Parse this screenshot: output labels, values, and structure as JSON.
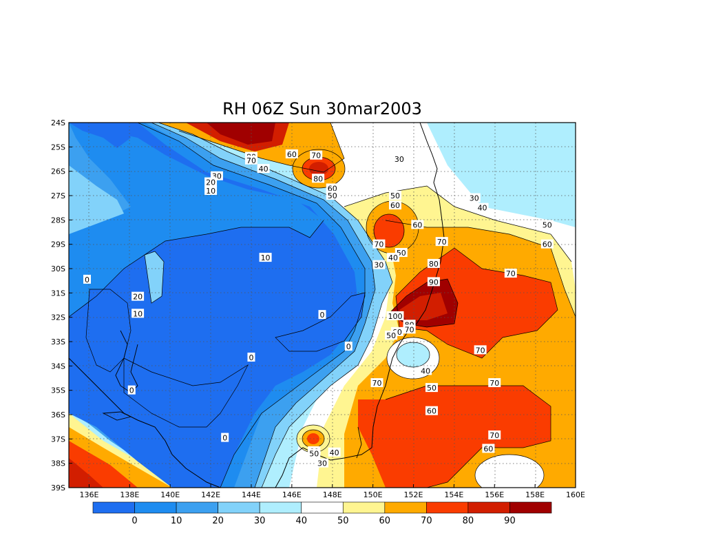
{
  "title": "RH 06Z Sun 30mar2003",
  "map": {
    "lon_labels": [
      "136E",
      "138E",
      "140E",
      "142E",
      "144E",
      "146E",
      "148E",
      "150E",
      "152E",
      "154E",
      "156E",
      "158E",
      "160E"
    ],
    "lat_labels": [
      "24S",
      "25S",
      "26S",
      "27S",
      "28S",
      "29S",
      "30S",
      "31S",
      "32S",
      "33S",
      "34S",
      "35S",
      "36S",
      "37S",
      "38S",
      "39S"
    ],
    "lon_range": [
      135,
      160
    ],
    "lat_range": [
      -39,
      -24
    ],
    "grid": "dotted"
  },
  "colorbar": {
    "levels": [
      "0",
      "10",
      "20",
      "30",
      "40",
      "50",
      "60",
      "70",
      "80",
      "90"
    ],
    "colors": [
      "#1e6ef0",
      "#1e8cf0",
      "#3ca0f0",
      "#82d2fa",
      "#afeefe",
      "#ffffff",
      "#fff591",
      "#ffaa00",
      "#fa3c00",
      "#d21e00",
      "#a00000"
    ]
  },
  "contour_labels": [
    {
      "text": "80",
      "lon": 144.0,
      "lat": -25.4
    },
    {
      "text": "70",
      "lon": 144.0,
      "lat": -25.55
    },
    {
      "text": "40",
      "lon": 144.6,
      "lat": -25.9
    },
    {
      "text": "30",
      "lon": 142.3,
      "lat": -26.2
    },
    {
      "text": "20",
      "lon": 142.0,
      "lat": -26.45
    },
    {
      "text": "10",
      "lon": 142.0,
      "lat": -26.8
    },
    {
      "text": "60",
      "lon": 146.0,
      "lat": -25.3
    },
    {
      "text": "70",
      "lon": 147.2,
      "lat": -25.35
    },
    {
      "text": "80",
      "lon": 147.3,
      "lat": -26.3
    },
    {
      "text": "60",
      "lon": 148.0,
      "lat": -26.7
    },
    {
      "text": "50",
      "lon": 148.0,
      "lat": -27.0
    },
    {
      "text": "30",
      "lon": 151.3,
      "lat": -25.5
    },
    {
      "text": "50",
      "lon": 151.1,
      "lat": -27.0
    },
    {
      "text": "60",
      "lon": 151.1,
      "lat": -27.4
    },
    {
      "text": "30",
      "lon": 155.0,
      "lat": -27.1
    },
    {
      "text": "40",
      "lon": 155.4,
      "lat": -27.5
    },
    {
      "text": "60",
      "lon": 152.2,
      "lat": -28.2
    },
    {
      "text": "50",
      "lon": 158.6,
      "lat": -28.2
    },
    {
      "text": "70",
      "lon": 153.4,
      "lat": -28.9
    },
    {
      "text": "60",
      "lon": 158.6,
      "lat": -29.0
    },
    {
      "text": "70",
      "lon": 150.3,
      "lat": -29.0
    },
    {
      "text": "50",
      "lon": 151.4,
      "lat": -29.35
    },
    {
      "text": "40",
      "lon": 151.0,
      "lat": -29.55
    },
    {
      "text": "30",
      "lon": 150.3,
      "lat": -29.85
    },
    {
      "text": "80",
      "lon": 153.0,
      "lat": -29.8
    },
    {
      "text": "70",
      "lon": 156.8,
      "lat": -30.2
    },
    {
      "text": "10",
      "lon": 144.7,
      "lat": -29.55
    },
    {
      "text": "90",
      "lon": 153.0,
      "lat": -30.55
    },
    {
      "text": "0",
      "lon": 135.9,
      "lat": -30.45
    },
    {
      "text": "20",
      "lon": 138.4,
      "lat": -31.15
    },
    {
      "text": "10",
      "lon": 138.4,
      "lat": -31.85
    },
    {
      "text": "0",
      "lon": 147.5,
      "lat": -31.9
    },
    {
      "text": "100",
      "lon": 151.1,
      "lat": -31.95
    },
    {
      "text": "80",
      "lon": 151.8,
      "lat": -32.3
    },
    {
      "text": "70",
      "lon": 151.8,
      "lat": -32.5
    },
    {
      "text": "60",
      "lon": 151.2,
      "lat": -32.6
    },
    {
      "text": "50",
      "lon": 150.9,
      "lat": -32.75
    },
    {
      "text": "0",
      "lon": 148.8,
      "lat": -33.2
    },
    {
      "text": "70",
      "lon": 155.3,
      "lat": -33.35
    },
    {
      "text": "0",
      "lon": 144.0,
      "lat": -33.65
    },
    {
      "text": "40",
      "lon": 152.6,
      "lat": -34.2
    },
    {
      "text": "70",
      "lon": 150.2,
      "lat": -34.7
    },
    {
      "text": "70",
      "lon": 156.0,
      "lat": -34.7
    },
    {
      "text": "50",
      "lon": 152.9,
      "lat": -34.9
    },
    {
      "text": "0",
      "lon": 138.1,
      "lat": -35.0
    },
    {
      "text": "60",
      "lon": 152.9,
      "lat": -35.85
    },
    {
      "text": "0",
      "lon": 142.7,
      "lat": -36.95
    },
    {
      "text": "70",
      "lon": 156.0,
      "lat": -36.85
    },
    {
      "text": "60",
      "lon": 147.1,
      "lat": -37.5
    },
    {
      "text": "50",
      "lon": 147.1,
      "lat": -37.6
    },
    {
      "text": "40",
      "lon": 148.1,
      "lat": -37.55
    },
    {
      "text": "60",
      "lon": 155.7,
      "lat": -37.4
    },
    {
      "text": "30",
      "lon": 147.5,
      "lat": -38.0
    }
  ]
}
